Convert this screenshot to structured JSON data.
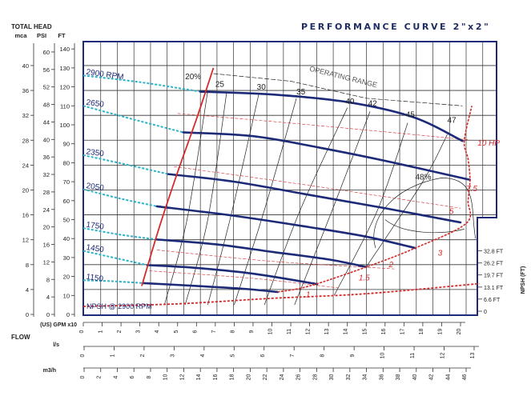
{
  "chart_data": {
    "type": "line",
    "title": "PERFORMANCE CURVE  2\"x2\"",
    "y_axis_title": "TOTAL HEAD",
    "y_axes": [
      {
        "unit": "mca",
        "ticks": [
          0,
          4,
          8,
          12,
          16,
          20,
          24,
          28,
          32,
          36,
          40
        ]
      },
      {
        "unit": "PSI",
        "ticks": [
          0,
          4,
          8,
          12,
          16,
          20,
          24,
          28,
          32,
          36,
          40,
          44,
          48,
          52,
          56,
          60
        ]
      },
      {
        "unit": "FT",
        "ticks": [
          0,
          10,
          20,
          30,
          40,
          50,
          60,
          70,
          80,
          90,
          100,
          110,
          120,
          130,
          140
        ]
      }
    ],
    "x_axis_title": "FLOW",
    "x_axes": [
      {
        "unit": "(US) GPM x10",
        "ticks": [
          0,
          1,
          2,
          3,
          4,
          5,
          6,
          7,
          8,
          9,
          10,
          11,
          12,
          13,
          14,
          15,
          16,
          17,
          18,
          19,
          20
        ]
      },
      {
        "unit": "l/s",
        "ticks": [
          0,
          1,
          2,
          3,
          4,
          5,
          6,
          7,
          8,
          9,
          10,
          11,
          12,
          13
        ]
      },
      {
        "unit": "m3/h",
        "ticks": [
          0,
          2,
          4,
          6,
          8,
          10,
          12,
          14,
          16,
          18,
          20,
          22,
          24,
          26,
          28,
          30,
          32,
          34,
          36,
          38,
          40,
          42,
          44,
          46
        ]
      }
    ],
    "npsh_axis": {
      "title": "NPSH (FT)",
      "ticks": [
        "0",
        "6.6 FT",
        "13.1 FT",
        "19.7 FT",
        "26.2 FT",
        "32.8 FT"
      ],
      "values": [
        0,
        6.6,
        13.1,
        19.7,
        26.2,
        32.8
      ]
    },
    "xlim": [
      0,
      21.9
    ],
    "ylim": [
      0,
      144
    ],
    "grid": true,
    "series": [
      {
        "name": "2900 RPM",
        "dashed": [
          [
            0,
            126
          ],
          [
            3,
            122.5
          ],
          [
            6.2,
            117.5
          ]
        ],
        "solid": [
          [
            6.2,
            117.5
          ],
          [
            10,
            116
          ],
          [
            14,
            112
          ],
          [
            17.5,
            104
          ],
          [
            20.1,
            91.5
          ]
        ]
      },
      {
        "name": "2650",
        "dashed": [
          [
            0,
            110
          ],
          [
            2.6,
            103
          ],
          [
            5.3,
            96
          ]
        ],
        "solid": [
          [
            5.3,
            96
          ],
          [
            9,
            94
          ],
          [
            12.5,
            88
          ],
          [
            16,
            81
          ],
          [
            20.5,
            71
          ]
        ]
      },
      {
        "name": "2350",
        "dashed": [
          [
            0,
            84
          ],
          [
            2.3,
            79
          ],
          [
            4.5,
            74
          ]
        ],
        "solid": [
          [
            4.5,
            74
          ],
          [
            8,
            70
          ],
          [
            12,
            63
          ],
          [
            16,
            56
          ],
          [
            20,
            48.5
          ]
        ]
      },
      {
        "name": "2050",
        "dashed": [
          [
            0,
            66
          ],
          [
            2,
            61
          ],
          [
            3.9,
            57
          ]
        ],
        "solid": [
          [
            3.9,
            57
          ],
          [
            8,
            52
          ],
          [
            12,
            46
          ],
          [
            15,
            41
          ],
          [
            17.6,
            35
          ]
        ]
      },
      {
        "name": "1750",
        "dashed": [
          [
            0,
            45.5
          ],
          [
            2,
            42
          ],
          [
            3.9,
            39.5
          ]
        ],
        "solid": [
          [
            3.9,
            39.5
          ],
          [
            7,
            37
          ],
          [
            10,
            33
          ],
          [
            13,
            29
          ],
          [
            15,
            25
          ]
        ]
      },
      {
        "name": "1450",
        "dashed": [
          [
            0,
            33.5
          ],
          [
            1.8,
            29.5
          ],
          [
            3.4,
            26
          ]
        ],
        "solid": [
          [
            3.4,
            26
          ],
          [
            6,
            24.5
          ],
          [
            9,
            21.5
          ],
          [
            12.4,
            16
          ]
        ]
      },
      {
        "name": "1150",
        "dashed": [
          [
            0,
            18
          ],
          [
            1.5,
            17.5
          ],
          [
            3.2,
            16.5
          ]
        ],
        "solid": [
          [
            3.2,
            16.5
          ],
          [
            6,
            15
          ],
          [
            8.5,
            13.5
          ],
          [
            10.3,
            11.8
          ]
        ]
      }
    ],
    "npsh_curve": {
      "name": "NPSH @ 2900 RPM",
      "points": [
        [
          0,
          2.6
        ],
        [
          5,
          4
        ],
        [
          10,
          7
        ],
        [
          15,
          9.5
        ],
        [
          21,
          15
        ]
      ]
    },
    "min_flow_line": [
      [
        3.1,
        15
      ],
      [
        4,
        45
      ],
      [
        5,
        75
      ],
      [
        6,
        103
      ],
      [
        6.9,
        130
      ]
    ],
    "power_line": [
      [
        10.3,
        11.8
      ],
      [
        12,
        15
      ],
      [
        15,
        25
      ],
      [
        17.6,
        35
      ],
      [
        20.3,
        48
      ],
      [
        20.4,
        60
      ],
      [
        20.5,
        71
      ],
      [
        20.4,
        82
      ],
      [
        20.2,
        91.5
      ],
      [
        20.6,
        110
      ]
    ],
    "power_labels": [
      {
        "text": "1",
        "at": [
          11.8,
          9
        ]
      },
      {
        "text": "1.5",
        "at": [
          14.6,
          18
        ]
      },
      {
        "text": "2",
        "at": [
          16.2,
          25
        ]
      },
      {
        "text": "3",
        "at": [
          18.8,
          31
        ]
      },
      {
        "text": "5",
        "at": [
          19.4,
          53
        ]
      },
      {
        "text": "7.5",
        "at": [
          20.3,
          65
        ]
      },
      {
        "text": "10 HP",
        "at": [
          20.9,
          89
        ]
      }
    ],
    "efficiency_labels": [
      {
        "text": "20%",
        "at": [
          5.4,
          124
        ]
      },
      {
        "text": "25",
        "at": [
          7.0,
          120
        ]
      },
      {
        "text": "30",
        "at": [
          9.2,
          118.5
        ]
      },
      {
        "text": "35",
        "at": [
          11.3,
          116
        ]
      },
      {
        "text": "40",
        "at": [
          13.9,
          111
        ]
      },
      {
        "text": "42",
        "at": [
          15.1,
          110
        ]
      },
      {
        "text": "45",
        "at": [
          17.1,
          104
        ]
      },
      {
        "text": "47",
        "at": [
          19.3,
          101
        ]
      },
      {
        "text": "48%",
        "at": [
          17.6,
          71
        ]
      }
    ],
    "efficiency_curves": [
      [
        [
          4.3,
          5
        ],
        [
          5.5,
          50
        ],
        [
          6.6,
          118
        ]
      ],
      [
        [
          5.4,
          5
        ],
        [
          6.6,
          50
        ],
        [
          7.6,
          117
        ]
      ],
      [
        [
          6.6,
          5
        ],
        [
          7.9,
          55
        ],
        [
          9.3,
          116
        ]
      ],
      [
        [
          8,
          5
        ],
        [
          9.6,
          55
        ],
        [
          11.3,
          114
        ]
      ],
      [
        [
          9.6,
          5
        ],
        [
          11.5,
          55
        ],
        [
          14,
          109
        ]
      ],
      [
        [
          11.2,
          5
        ],
        [
          13.2,
          55
        ],
        [
          15.2,
          107
        ]
      ],
      [
        [
          13.3,
          10
        ],
        [
          15.6,
          55
        ],
        [
          17.2,
          101
        ]
      ],
      [
        [
          15,
          25
        ],
        [
          18,
          70
        ],
        [
          19.3,
          95
        ]
      ]
    ],
    "annotation": "OPERATING RANGE"
  },
  "colors": {
    "head_curve": "#1c2a78",
    "speed_dashed": "#2bb3c8",
    "power": "#d42a2a",
    "grid": "#333333",
    "frame": "#1c2a78",
    "title": "#1f2d63"
  }
}
